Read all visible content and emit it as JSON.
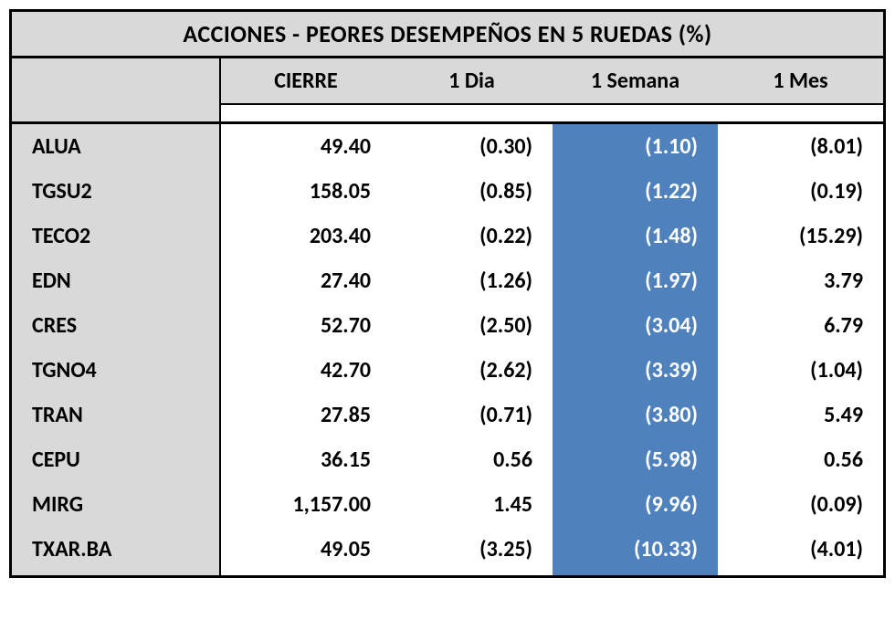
{
  "title": "ACCIONES  - PEORES DESEMPEÑOS EN 5 RUEDAS (%)",
  "columns": [
    "CIERRE",
    "1 Dia",
    "1 Semana",
    "1 Mes"
  ],
  "highlight_column_index": 2,
  "colors": {
    "header_bg": "#d9d9d9",
    "highlight_bg": "#4f81bd",
    "highlight_fg": "#ffffff",
    "border": "#000000"
  },
  "rows": [
    {
      "ticker": "ALUA",
      "cells": [
        "49.40",
        "(0.30)",
        "(1.10)",
        "(8.01)"
      ]
    },
    {
      "ticker": "TGSU2",
      "cells": [
        "158.05",
        "(0.85)",
        "(1.22)",
        "(0.19)"
      ]
    },
    {
      "ticker": "TECO2",
      "cells": [
        "203.40",
        "(0.22)",
        "(1.48)",
        "(15.29)"
      ]
    },
    {
      "ticker": "EDN",
      "cells": [
        "27.40",
        "(1.26)",
        "(1.97)",
        "3.79"
      ]
    },
    {
      "ticker": "CRES",
      "cells": [
        "52.70",
        "(2.50)",
        "(3.04)",
        "6.79"
      ]
    },
    {
      "ticker": "TGNO4",
      "cells": [
        "42.70",
        "(2.62)",
        "(3.39)",
        "(1.04)"
      ]
    },
    {
      "ticker": "TRAN",
      "cells": [
        "27.85",
        "(0.71)",
        "(3.80)",
        "5.49"
      ]
    },
    {
      "ticker": "CEPU",
      "cells": [
        "36.15",
        "0.56",
        "(5.98)",
        "0.56"
      ]
    },
    {
      "ticker": "MIRG",
      "cells": [
        "1,157.00",
        "1.45",
        "(9.96)",
        "(0.09)"
      ]
    },
    {
      "ticker": "TXAR.BA",
      "cells": [
        "49.05",
        "(3.25)",
        "(10.33)",
        "(4.01)"
      ]
    }
  ]
}
